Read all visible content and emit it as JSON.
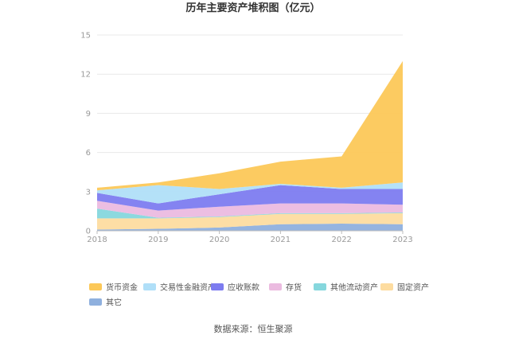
{
  "chart_data": {
    "type": "area",
    "stacked": true,
    "title": "历年主要资产堆积图（亿元）",
    "x": [
      "2018",
      "2019",
      "2020",
      "2021",
      "2022",
      "2023"
    ],
    "ylim": [
      0,
      15
    ],
    "yticks": [
      "0",
      "3",
      "6",
      "9",
      "12",
      "15"
    ],
    "grid": true,
    "legend_position": "bottom",
    "series": [
      {
        "name": "其它",
        "color": "#8fb0de",
        "values": [
          0.1,
          0.15,
          0.25,
          0.5,
          0.55,
          0.5
        ]
      },
      {
        "name": "固定资产",
        "color": "#fddca0",
        "values": [
          0.85,
          0.8,
          0.8,
          0.8,
          0.75,
          0.85
        ]
      },
      {
        "name": "其他流动资产",
        "color": "#86d7dd",
        "values": [
          0.75,
          0.05,
          0.05,
          0.05,
          0.05,
          0.05
        ]
      },
      {
        "name": "存货",
        "color": "#ebbbe0",
        "values": [
          0.6,
          0.55,
          0.75,
          0.75,
          0.75,
          0.6
        ]
      },
      {
        "name": "应收账款",
        "color": "#7d7cf0",
        "values": [
          0.6,
          0.55,
          0.95,
          1.4,
          1.1,
          1.2
        ]
      },
      {
        "name": "交易性金融资产",
        "color": "#b0dff8",
        "values": [
          0.2,
          1.4,
          0.4,
          0.1,
          0.1,
          0.5
        ]
      },
      {
        "name": "货币资金",
        "color": "#fcc858",
        "values": [
          0.2,
          0.2,
          1.2,
          1.7,
          2.4,
          9.3
        ]
      }
    ],
    "legend_order": [
      "货币资金",
      "交易性金融资产",
      "应收账款",
      "存货",
      "其他流动资产",
      "固定资产",
      "其它"
    ]
  },
  "source_text": "数据来源：恒生聚源"
}
